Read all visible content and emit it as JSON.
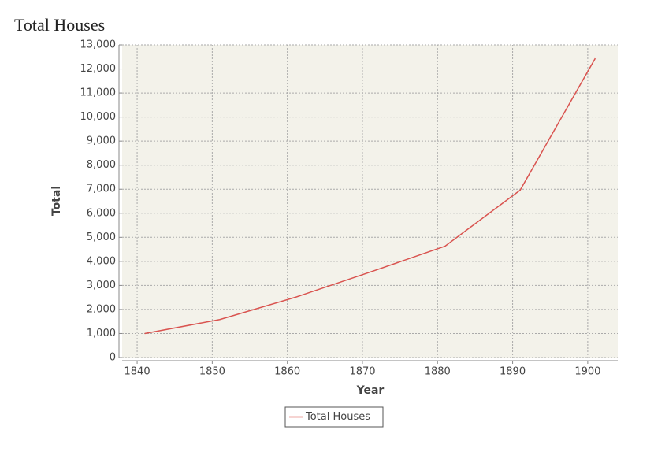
{
  "chart_data": {
    "type": "line",
    "title": "Total Houses",
    "x_label": "Year",
    "y_label": "Total",
    "x": [
      1841,
      1851,
      1861,
      1871,
      1881,
      1891,
      1901
    ],
    "series": [
      {
        "name": "Total Houses",
        "color": "#d9534f",
        "values": [
          1000,
          1580,
          2500,
          3550,
          4630,
          6960,
          12440
        ]
      }
    ],
    "xlim": [
      1838,
      1904
    ],
    "xticks": [
      1840,
      1850,
      1860,
      1870,
      1880,
      1890,
      1900
    ],
    "ylim": [
      0,
      13000
    ],
    "yticks": [
      0,
      {
        "value": 1000,
        "label": "1,000"
      },
      {
        "value": 2000,
        "label": "2,000"
      },
      {
        "value": 3000,
        "label": "3,000"
      },
      {
        "value": 4000,
        "label": "4,000"
      },
      {
        "value": 5000,
        "label": "5,000"
      },
      {
        "value": 6000,
        "label": "6,000"
      },
      {
        "value": 7000,
        "label": "7,000"
      },
      {
        "value": 8000,
        "label": "8,000"
      },
      {
        "value": 9000,
        "label": "9,000"
      },
      {
        "value": 10000,
        "label": "10,000"
      },
      {
        "value": 11000,
        "label": "11,000"
      },
      {
        "value": 12000,
        "label": "12,000"
      },
      {
        "value": 13000,
        "label": "13,000"
      }
    ],
    "grid": true,
    "legend": "bottom"
  }
}
